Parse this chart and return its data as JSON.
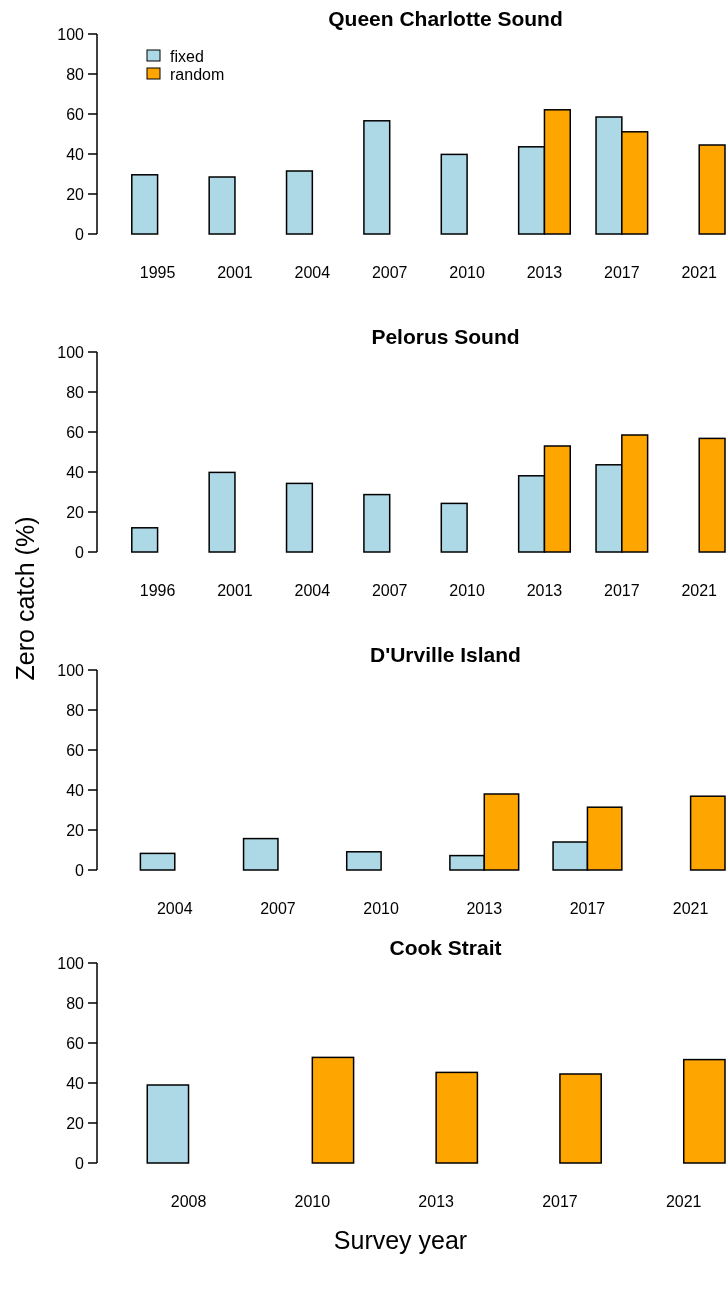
{
  "chart_data": [
    {
      "type": "bar",
      "title": "Queen Charlotte Sound",
      "categories": [
        "1995",
        "2001",
        "2004",
        "2007",
        "2010",
        "2013",
        "2017",
        "2021"
      ],
      "series": [
        {
          "name": "fixed",
          "color": "#add8e6",
          "values": [
            29.6,
            28.5,
            31.5,
            56.6,
            39.8,
            43.6,
            58.5,
            null
          ]
        },
        {
          "name": "random",
          "color": "#ffa500",
          "values": [
            null,
            null,
            null,
            null,
            null,
            62.1,
            51.1,
            44.5
          ]
        }
      ],
      "ylim": [
        0,
        100
      ],
      "yticks": [
        0,
        20,
        40,
        60,
        80,
        100
      ],
      "legend": "top left",
      "grid": false
    },
    {
      "type": "bar",
      "title": "Pelorus Sound",
      "ylabel": "Zero catch (%)",
      "categories": [
        "1996",
        "2001",
        "2004",
        "2007",
        "2010",
        "2013",
        "2017",
        "2021"
      ],
      "series": [
        {
          "color": "#add8e6",
          "values": [
            12.1,
            39.8,
            34.3,
            28.7,
            24.3,
            38.1,
            43.6,
            null
          ]
        },
        {
          "color": "#ffa500",
          "values": [
            null,
            null,
            null,
            null,
            null,
            53,
            58.5,
            56.8
          ]
        }
      ],
      "ylim": [
        0,
        100
      ],
      "yticks": [
        0,
        20,
        40,
        60,
        80,
        100
      ],
      "legend": false,
      "grid": false
    },
    {
      "type": "bar",
      "title": "D'Urville Island",
      "categories": [
        "2004",
        "2007",
        "2010",
        "2013",
        "2017",
        "2021"
      ],
      "series": [
        {
          "color": "#add8e6",
          "values": [
            8.3,
            15.7,
            9.1,
            7.2,
            14,
            null
          ]
        },
        {
          "color": "#ffa500",
          "values": [
            null,
            null,
            null,
            38,
            31.4,
            36.9
          ]
        }
      ],
      "ylim": [
        0,
        100
      ],
      "yticks": [
        0,
        20,
        40,
        60,
        80,
        100
      ],
      "legend": false,
      "grid": false
    },
    {
      "type": "bar",
      "title": "Cook Strait",
      "xlabel": "Survey year",
      "categories": [
        "2008",
        "2010",
        "2013",
        "2017",
        "2021"
      ],
      "series": [
        {
          "color": "#add8e6",
          "values": [
            39,
            null,
            null,
            null,
            null
          ]
        },
        {
          "color": "#ffa500",
          "values": [
            null,
            52.8,
            45.3,
            44.5,
            51.7
          ]
        }
      ],
      "ylim": [
        0,
        100
      ],
      "yticks": [
        0,
        20,
        40,
        60,
        80,
        100
      ],
      "legend": false,
      "grid": false
    }
  ]
}
